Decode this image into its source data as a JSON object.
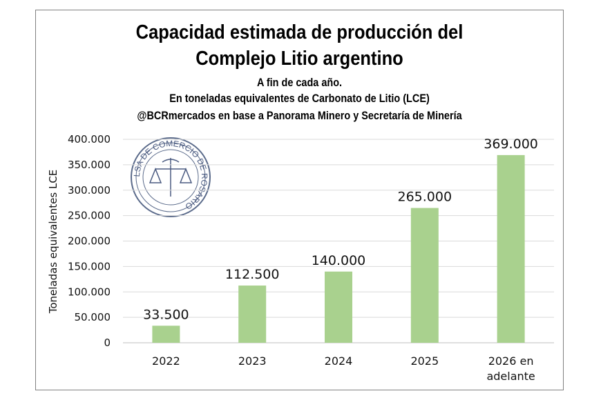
{
  "chart_data": {
    "type": "bar",
    "title": "Capacidad estimada de producción del Complejo Litio argentino",
    "title_lines": [
      "Capacidad estimada de producción del",
      "Complejo Litio argentino"
    ],
    "subtitles": [
      "A fin de cada año.",
      "En toneladas equivalentes de Carbonato de Litio (LCE)",
      "@BCRmercados en base a Panorama Minero y Secretaría de Minería"
    ],
    "categories": [
      "2022",
      "2023",
      "2024",
      "2025",
      "2026 en adelante"
    ],
    "category_lines": [
      [
        "2022"
      ],
      [
        "2023"
      ],
      [
        "2024"
      ],
      [
        "2025"
      ],
      [
        "2026 en",
        "adelante"
      ]
    ],
    "values": [
      33500,
      112500,
      140000,
      265000,
      369000
    ],
    "data_labels": [
      "33.500",
      "112.500",
      "140.000",
      "265.000",
      "369.000"
    ],
    "xlabel": "",
    "ylabel": "Toneladas equivalentes LCE",
    "ylim": [
      0,
      400000
    ],
    "yticks": [
      0,
      50000,
      100000,
      150000,
      200000,
      250000,
      300000,
      350000,
      400000
    ],
    "ytick_labels": [
      "0",
      "50.000",
      "100.000",
      "150.000",
      "200.000",
      "250.000",
      "300.000",
      "350.000",
      "400.000"
    ],
    "grid": true,
    "legend": "none",
    "bar_color": "#a9d18e",
    "watermark": {
      "type": "seal",
      "text": "BOLSA DE COMERCIO DE ROSARIO"
    }
  }
}
